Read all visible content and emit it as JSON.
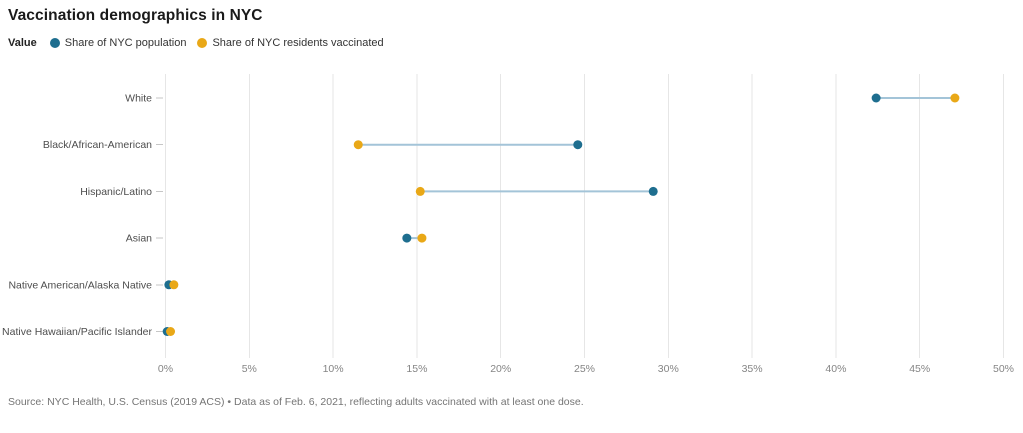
{
  "header": {
    "title": "Vaccination demographics in NYC"
  },
  "legend": {
    "key_label": "Value",
    "items": [
      {
        "label": "Share of NYC population",
        "color": "#1e6e8f"
      },
      {
        "label": "Share of NYC residents vaccinated",
        "color": "#e9a817"
      }
    ]
  },
  "chart_data": {
    "type": "scatter",
    "subtype": "dumbbell",
    "title": "Vaccination demographics in NYC",
    "categories": [
      "White",
      "Black/African-American",
      "Hispanic/Latino",
      "Asian",
      "Native American/Alaska Native",
      "Native Hawaiian/Pacific Islander"
    ],
    "series": [
      {
        "name": "Share of NYC population",
        "color": "#1e6e8f",
        "values": [
          42.4,
          24.6,
          29.1,
          14.4,
          0.2,
          0.1
        ]
      },
      {
        "name": "Share of NYC residents vaccinated",
        "color": "#e9a817",
        "values": [
          47.1,
          11.5,
          15.2,
          15.3,
          0.5,
          0.3
        ]
      }
    ],
    "xlabel": "",
    "ylabel": "",
    "xlim": [
      0,
      50
    ],
    "x_tick_step": 5,
    "x_ticks": [
      "0%",
      "5%",
      "10%",
      "15%",
      "20%",
      "25%",
      "30%",
      "35%",
      "40%",
      "45%",
      "50%"
    ],
    "grid": true,
    "legend_position": "top-left",
    "gridline_color": "#e6e6e6",
    "connector_color": "#a3c4d8",
    "category_tick_color": "#c6c6c6"
  },
  "footer": {
    "source": "Source: NYC Health, U.S. Census (2019 ACS) • Data as of Feb. 6, 2021, reflecting adults vaccinated with at least one dose."
  }
}
